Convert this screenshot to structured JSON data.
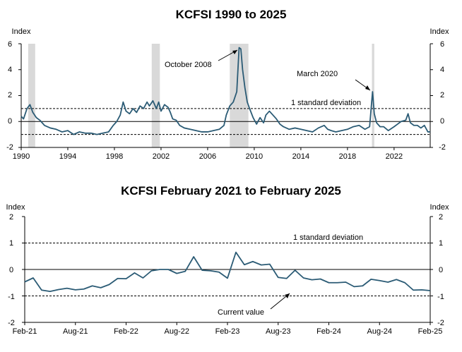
{
  "colors": {
    "line": "#2b5b75",
    "recession": "#d9d9d9",
    "axis": "#000000",
    "guide": "#000000"
  },
  "chart_data": [
    {
      "type": "line",
      "title": "KCFSI 1990 to 2025",
      "ylabel": "Index",
      "ylim": [
        -2,
        6
      ],
      "yticks": [
        "6",
        "4",
        "2",
        "0",
        "-2"
      ],
      "xlim": [
        1990,
        2025.1
      ],
      "xticks": [
        1990,
        1994,
        1998,
        2002,
        2006,
        2010,
        2014,
        2018,
        2022
      ],
      "xtick_labels": [
        "1990",
        "1994",
        "1998",
        "2002",
        "2006",
        "2010",
        "2014",
        "2018",
        "2022"
      ],
      "std_dev_lines": [
        1,
        -1
      ],
      "std_dev_label": "1 standard deviation",
      "recessions": [
        [
          1990.6,
          1991.2
        ],
        [
          2001.2,
          2001.9
        ],
        [
          2007.9,
          2009.5
        ],
        [
          2020.1,
          2020.3
        ]
      ],
      "annotations": [
        {
          "text": "October 2008",
          "x": 2008.8,
          "y": 5.7
        },
        {
          "text": "March 2020",
          "x": 2020.2,
          "y": 2.4
        }
      ],
      "series": [
        {
          "x": [
            1990.0,
            1990.2,
            1990.5,
            1990.75,
            1991.0,
            1991.3,
            1991.6,
            1992.0,
            1992.5,
            1993.0,
            1993.5,
            1994.0,
            1994.5,
            1995.0,
            1995.5,
            1996.0,
            1996.5,
            1997.0,
            1997.5,
            1997.9,
            1998.2,
            1998.5,
            1998.75,
            1999.0,
            1999.3,
            1999.6,
            1999.9,
            2000.2,
            2000.5,
            2000.8,
            2001.0,
            2001.3,
            2001.6,
            2001.8,
            2002.0,
            2002.3,
            2002.6,
            2002.8,
            2003.0,
            2003.3,
            2003.6,
            2004.0,
            2004.5,
            2005.0,
            2005.5,
            2006.0,
            2006.5,
            2007.0,
            2007.4,
            2007.6,
            2007.9,
            2008.2,
            2008.5,
            2008.7,
            2008.85,
            2009.0,
            2009.2,
            2009.4,
            2009.6,
            2009.9,
            2010.2,
            2010.5,
            2010.8,
            2011.0,
            2011.3,
            2011.6,
            2011.9,
            2012.2,
            2012.5,
            2013.0,
            2013.5,
            2014.0,
            2014.5,
            2015.0,
            2015.5,
            2016.0,
            2016.3,
            2016.6,
            2017.0,
            2017.5,
            2018.0,
            2018.5,
            2019.0,
            2019.5,
            2019.9,
            2020.15,
            2020.3,
            2020.5,
            2020.8,
            2021.1,
            2021.5,
            2022.0,
            2022.3,
            2022.6,
            2023.0,
            2023.2,
            2023.4,
            2023.7,
            2024.0,
            2024.3,
            2024.6,
            2024.9,
            2025.1
          ],
          "values": [
            0.4,
            0.2,
            1.0,
            1.3,
            0.7,
            0.3,
            0.1,
            -0.3,
            -0.5,
            -0.6,
            -0.8,
            -0.7,
            -1.0,
            -0.8,
            -0.9,
            -0.9,
            -1.0,
            -0.9,
            -0.8,
            -0.3,
            0.0,
            0.5,
            1.5,
            0.8,
            0.6,
            1.0,
            0.7,
            1.2,
            1.0,
            1.5,
            1.2,
            1.6,
            1.0,
            1.5,
            0.8,
            1.3,
            1.1,
            0.7,
            0.2,
            0.1,
            -0.3,
            -0.5,
            -0.6,
            -0.7,
            -0.8,
            -0.8,
            -0.7,
            -0.6,
            -0.3,
            0.5,
            1.2,
            1.5,
            2.3,
            5.7,
            5.6,
            4.0,
            2.6,
            1.5,
            1.0,
            0.3,
            -0.2,
            0.3,
            -0.1,
            0.5,
            0.8,
            0.5,
            0.2,
            -0.2,
            -0.4,
            -0.6,
            -0.5,
            -0.6,
            -0.7,
            -0.8,
            -0.5,
            -0.3,
            -0.6,
            -0.7,
            -0.8,
            -0.7,
            -0.6,
            -0.4,
            -0.3,
            -0.6,
            -0.4,
            2.3,
            0.6,
            -0.1,
            -0.4,
            -0.4,
            -0.7,
            -0.4,
            -0.2,
            0.0,
            0.1,
            0.6,
            -0.1,
            -0.3,
            -0.3,
            -0.5,
            -0.3,
            -0.8,
            -0.8
          ]
        }
      ]
    },
    {
      "type": "line",
      "title": "KCFSI February 2021 to February 2025",
      "ylabel": "Index",
      "ylim": [
        -2,
        2
      ],
      "yticks": [
        "2",
        "1",
        "0",
        "-1",
        "-2"
      ],
      "xlim": [
        0,
        48
      ],
      "xticks": [
        0,
        6,
        12,
        18,
        24,
        30,
        36,
        42,
        48
      ],
      "xtick_labels": [
        "Feb-21",
        "Aug-21",
        "Feb-22",
        "Aug-22",
        "Feb-23",
        "Aug-23",
        "Feb-24",
        "Aug-24",
        "Feb-25"
      ],
      "std_dev_lines": [
        1,
        -1
      ],
      "std_dev_label": "1 standard deviation",
      "current_value_label": "Current value",
      "current_value": -0.8,
      "series": [
        {
          "x": [
            "Feb-21",
            "Mar-21",
            "Apr-21",
            "May-21",
            "Jun-21",
            "Jul-21",
            "Aug-21",
            "Sep-21",
            "Oct-21",
            "Nov-21",
            "Dec-21",
            "Jan-22",
            "Feb-22",
            "Mar-22",
            "Apr-22",
            "May-22",
            "Jun-22",
            "Jul-22",
            "Aug-22",
            "Sep-22",
            "Oct-22",
            "Nov-22",
            "Dec-22",
            "Jan-23",
            "Feb-23",
            "Mar-23",
            "Apr-23",
            "May-23",
            "Jun-23",
            "Jul-23",
            "Aug-23",
            "Sep-23",
            "Oct-23",
            "Nov-23",
            "Dec-23",
            "Jan-24",
            "Feb-24",
            "Mar-24",
            "Apr-24",
            "May-24",
            "Jun-24",
            "Jul-24",
            "Aug-24",
            "Sep-24",
            "Oct-24",
            "Nov-24",
            "Dec-24",
            "Jan-25",
            "Feb-25"
          ],
          "values": [
            -0.47,
            -0.32,
            -0.78,
            -0.83,
            -0.76,
            -0.71,
            -0.77,
            -0.74,
            -0.62,
            -0.69,
            -0.57,
            -0.34,
            -0.35,
            -0.13,
            -0.32,
            -0.05,
            0.0,
            0.0,
            -0.15,
            -0.07,
            0.48,
            -0.03,
            -0.05,
            -0.1,
            -0.33,
            0.65,
            0.18,
            0.3,
            0.17,
            0.2,
            -0.3,
            -0.34,
            -0.03,
            -0.32,
            -0.39,
            -0.36,
            -0.5,
            -0.5,
            -0.48,
            -0.65,
            -0.62,
            -0.37,
            -0.42,
            -0.48,
            -0.38,
            -0.5,
            -0.78,
            -0.77,
            -0.8
          ]
        }
      ]
    }
  ]
}
